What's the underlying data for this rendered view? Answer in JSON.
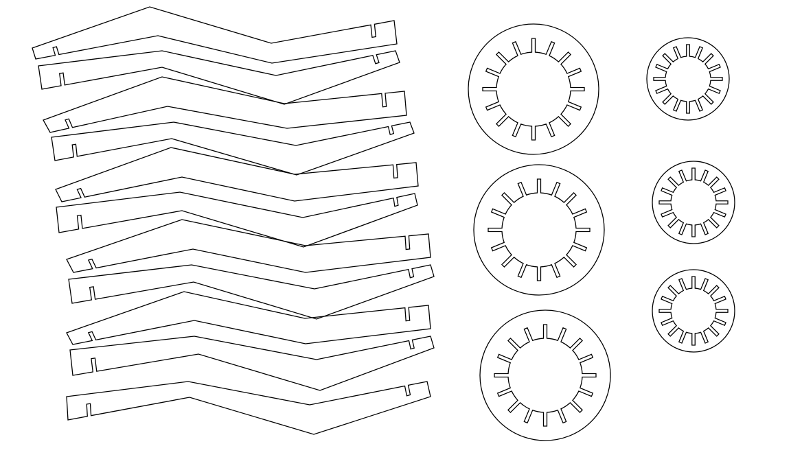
{
  "drawing": {
    "background": "#ffffff",
    "line_color": "#000000",
    "strips": {
      "count": 12,
      "slots_per_strip": 2
    },
    "rings": [
      {
        "size": "large",
        "count": 3,
        "slots": 16
      },
      {
        "size": "small",
        "count": 3,
        "slots": 16
      }
    ]
  }
}
